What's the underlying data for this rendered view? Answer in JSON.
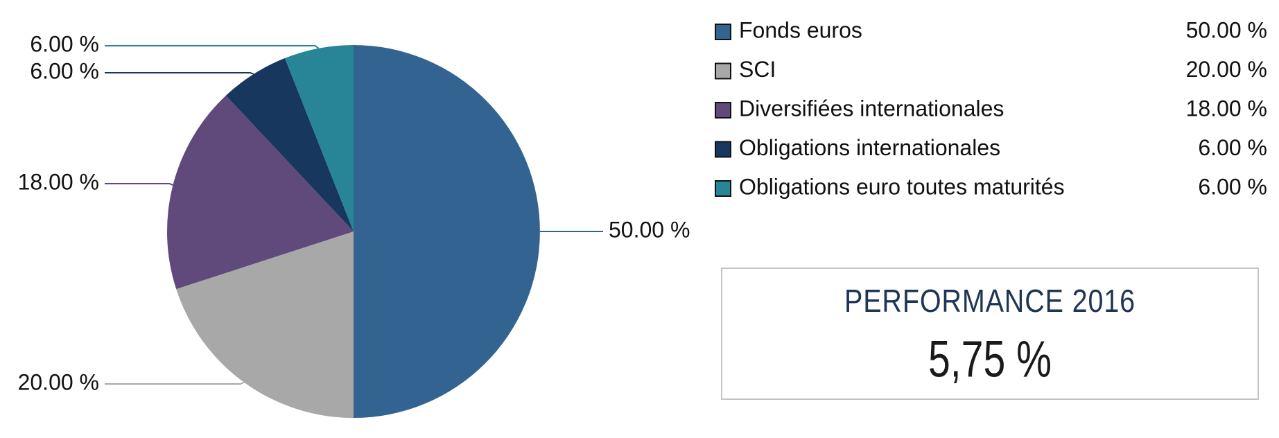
{
  "chart_data": {
    "type": "pie",
    "categories": [
      "Fonds euros",
      "SCI",
      "Diversifiées internationales",
      "Obligations internationales",
      "Obligations euro toutes maturités"
    ],
    "values": [
      50,
      20,
      18,
      6,
      6
    ],
    "value_labels": [
      "50.00 %",
      "20.00 %",
      "18.00 %",
      "6.00 %",
      "6.00 %"
    ],
    "colors": [
      "#336391",
      "#a8a8a8",
      "#604a7b",
      "#17375e",
      "#288597"
    ],
    "legend": "right"
  },
  "performance": {
    "title": "PERFORMANCE 2016",
    "value": "5,75 %"
  }
}
